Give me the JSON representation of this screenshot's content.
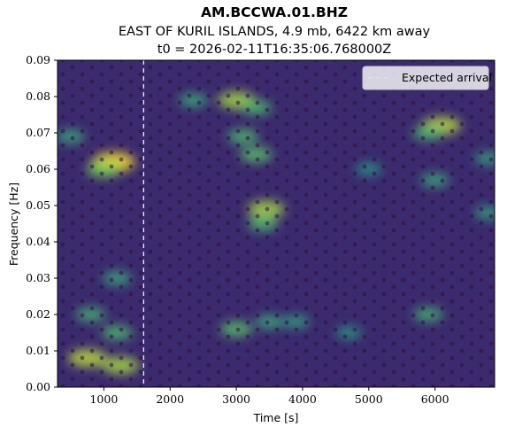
{
  "chart_data": {
    "type": "heatmap",
    "title": "AM.BCCWA.01.BHZ",
    "subtitle_line1": "EAST OF KURIL ISLANDS, 4.9 mb, 6422 km away",
    "subtitle_line2": "t0 = 2026-02-11T16:35:06.768000Z",
    "xlabel": "Time [s]",
    "ylabel": "Frequency [Hz]",
    "xlim": [
      300,
      6900
    ],
    "ylim": [
      0.0,
      0.09
    ],
    "x_ticks": [
      1000,
      2000,
      3000,
      4000,
      5000,
      6000
    ],
    "x_tick_labels": [
      "1000",
      "2000",
      "3000",
      "4000",
      "5000",
      "6000"
    ],
    "y_ticks": [
      0.0,
      0.01,
      0.02,
      0.03,
      0.04,
      0.05,
      0.06,
      0.07,
      0.08,
      0.09
    ],
    "y_tick_labels": [
      "0.00",
      "0.01",
      "0.02",
      "0.03",
      "0.04",
      "0.05",
      "0.06",
      "0.07",
      "0.08",
      "0.09"
    ],
    "colormap": "viridis",
    "expected_arrival": {
      "x": 1600,
      "label": "Expected arrival",
      "style": "dashed",
      "color": "#ffffff"
    },
    "legend_position": "top-right",
    "grid": false,
    "hotspots": [
      {
        "t": 1150,
        "f": 0.062,
        "intensity": 1.0
      },
      {
        "t": 1000,
        "f": 0.06,
        "intensity": 0.7
      },
      {
        "t": 750,
        "f": 0.008,
        "intensity": 0.85
      },
      {
        "t": 1250,
        "f": 0.006,
        "intensity": 0.8
      },
      {
        "t": 1200,
        "f": 0.015,
        "intensity": 0.55
      },
      {
        "t": 800,
        "f": 0.02,
        "intensity": 0.5
      },
      {
        "t": 1200,
        "f": 0.03,
        "intensity": 0.45
      },
      {
        "t": 3000,
        "f": 0.079,
        "intensity": 0.8
      },
      {
        "t": 3300,
        "f": 0.077,
        "intensity": 0.55
      },
      {
        "t": 3450,
        "f": 0.049,
        "intensity": 0.8
      },
      {
        "t": 3400,
        "f": 0.045,
        "intensity": 0.55
      },
      {
        "t": 3100,
        "f": 0.069,
        "intensity": 0.55
      },
      {
        "t": 3300,
        "f": 0.064,
        "intensity": 0.6
      },
      {
        "t": 3000,
        "f": 0.016,
        "intensity": 0.6
      },
      {
        "t": 3500,
        "f": 0.018,
        "intensity": 0.45
      },
      {
        "t": 6100,
        "f": 0.072,
        "intensity": 0.85
      },
      {
        "t": 5900,
        "f": 0.07,
        "intensity": 0.55
      },
      {
        "t": 5900,
        "f": 0.02,
        "intensity": 0.5
      },
      {
        "t": 6000,
        "f": 0.057,
        "intensity": 0.45
      },
      {
        "t": 500,
        "f": 0.069,
        "intensity": 0.45
      },
      {
        "t": 2350,
        "f": 0.079,
        "intensity": 0.45
      },
      {
        "t": 3900,
        "f": 0.018,
        "intensity": 0.4
      },
      {
        "t": 4700,
        "f": 0.015,
        "intensity": 0.35
      },
      {
        "t": 5000,
        "f": 0.06,
        "intensity": 0.35
      },
      {
        "t": 6800,
        "f": 0.048,
        "intensity": 0.4
      },
      {
        "t": 6800,
        "f": 0.063,
        "intensity": 0.4
      }
    ]
  }
}
